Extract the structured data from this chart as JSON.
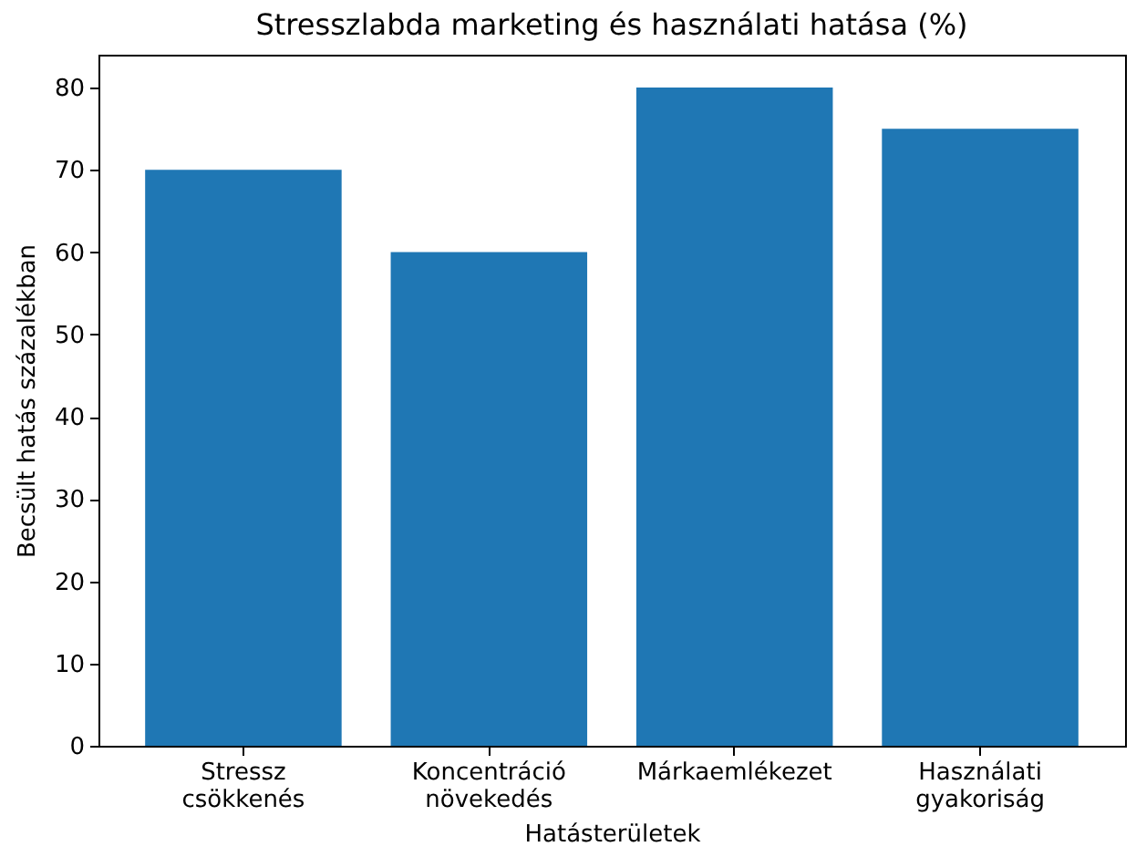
{
  "chart_data": {
    "type": "bar",
    "title": "Stresszlabda marketing és használati hatása (%)",
    "xlabel": "Hatásterületek",
    "ylabel": "Becsült hatás százalékban",
    "categories": [
      "Stressz csökkenés",
      "Koncentráció növekedés",
      "Márkaemlékezet",
      "Használati gyakoriság"
    ],
    "values": [
      70,
      60,
      80,
      75
    ],
    "color": "#1f77b4",
    "ylim": [
      0,
      84
    ],
    "yticks": [
      0,
      10,
      20,
      30,
      40,
      50,
      60,
      70,
      80
    ],
    "grid": false
  }
}
